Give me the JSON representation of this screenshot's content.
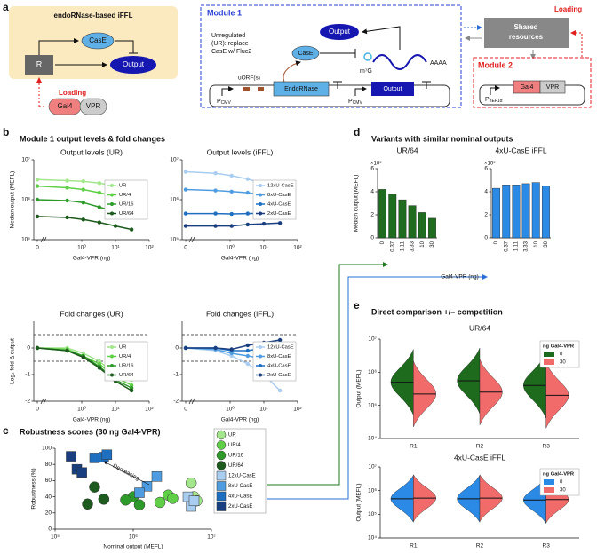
{
  "panel_labels": [
    "a",
    "b",
    "c",
    "d",
    "e"
  ],
  "headings": {
    "b": "Module 1 output levels & fold changes",
    "d": "Variants with similar nominal outputs",
    "e": "Direct comparison +/– competition"
  },
  "diagram": {
    "ffl_title": "endoRNase-based iFFL",
    "ffl_case": "CasE",
    "ffl_r": "R",
    "ffl_output": "Output",
    "loading_left": "Loading",
    "gal4_left": "Gal4",
    "vpr_left": "VPR",
    "module1": "Module 1",
    "m1_output": "Output",
    "ur_note": [
      "Unregulated",
      "(UR): replace",
      "CasE w/ Fluc2"
    ],
    "m1_case": "CasE",
    "cap": "m⁷G",
    "polya": "AAAA",
    "uorf": "uORF(s)",
    "endornase": "EndoRNase",
    "m1_gene": "Output",
    "promoter1": {
      "main": "P",
      "sub": "CMV"
    },
    "promoter2": {
      "main": "P",
      "sub": "CMV"
    },
    "shared": [
      "Shared",
      "resources"
    ],
    "loading_right": "Loading",
    "module2": "Module 2",
    "promoter3": {
      "main": "P",
      "sub": "hEF1α"
    },
    "gal4_right": "Gal4",
    "vpr_right": "VPR"
  },
  "chart_data": [
    {
      "type": "line",
      "title": "Output levels (UR)",
      "xlabel": "Gal4-VPR (ng)",
      "ylabel": "Median output (MEFL)",
      "xscale": "log",
      "yscale": "log",
      "x": [
        0,
        0.37,
        1.11,
        3.33,
        10,
        30
      ],
      "xlim": [
        0.1,
        100
      ],
      "xticks": [
        0,
        {
          "value": 1,
          "label": "10⁰"
        },
        {
          "value": 10,
          "label": "10¹"
        },
        {
          "value": 100,
          "label": "10²"
        }
      ],
      "ylim": [
        100000,
        10000000
      ],
      "yticks": [
        {
          "value": 100000,
          "label": "10⁵"
        },
        {
          "value": 1000000,
          "label": "10⁶"
        },
        {
          "value": 10000000,
          "label": "10⁷"
        }
      ],
      "legend": "right",
      "series": [
        {
          "name": "UR",
          "color": "#a3e68c",
          "values": [
            3200000,
            3000000,
            2900000,
            2600000,
            2200000,
            1900000
          ]
        },
        {
          "name": "UR/4",
          "color": "#5fcf47",
          "values": [
            2200000,
            2000000,
            1800000,
            1500000,
            1200000,
            1000000
          ]
        },
        {
          "name": "UR/16",
          "color": "#2e9a2a",
          "values": [
            1000000,
            950000,
            850000,
            650000,
            500000,
            400000
          ]
        },
        {
          "name": "UR/64",
          "color": "#1d5a1d",
          "values": [
            380000,
            360000,
            320000,
            270000,
            220000,
            180000
          ]
        }
      ]
    },
    {
      "type": "line",
      "title": "Output levels (iFFL)",
      "xlabel": "Gal4-VPR (ng)",
      "xscale": "log",
      "yscale": "log",
      "x": [
        0,
        0.37,
        1.11,
        3.33,
        10,
        30
      ],
      "xlim": [
        0.1,
        100
      ],
      "xticks": [
        0,
        {
          "value": 1,
          "label": "10⁰"
        },
        {
          "value": 10,
          "label": "10¹"
        },
        {
          "value": 100,
          "label": "10²"
        }
      ],
      "ylim": [
        100000,
        10000000
      ],
      "yticks": [
        {
          "value": 100000,
          "label": "10⁵"
        },
        {
          "value": 1000000,
          "label": "10⁶"
        },
        {
          "value": 10000000,
          "label": "10⁷"
        }
      ],
      "legend": "right",
      "series": [
        {
          "name": "12xU-CasE",
          "color": "#a9cdf0",
          "values": [
            5000000,
            4600000,
            4000000,
            3300000,
            2500000,
            1600000
          ]
        },
        {
          "name": "8xU-CasE",
          "color": "#4f9de0",
          "values": [
            1800000,
            1700000,
            1600000,
            1500000,
            1300000,
            1100000
          ]
        },
        {
          "name": "4xU-CasE",
          "color": "#1f6fc0",
          "values": [
            450000,
            450000,
            440000,
            450000,
            460000,
            480000
          ]
        },
        {
          "name": "2xU-CasE",
          "color": "#1a3f80",
          "values": [
            220000,
            220000,
            220000,
            240000,
            250000,
            260000
          ]
        }
      ]
    },
    {
      "type": "line",
      "title": "Fold changes (UR)",
      "xlabel": "Gal4-VPR (ng)",
      "ylabel": "Log₂ fold-Δ output",
      "xscale": "log",
      "x": [
        0,
        0.37,
        1.11,
        3.33,
        10,
        30
      ],
      "xlim": [
        0.1,
        100
      ],
      "xticks": [
        0,
        {
          "value": 1,
          "label": "10⁰"
        },
        {
          "value": 10,
          "label": "10¹"
        },
        {
          "value": 100,
          "label": "10²"
        }
      ],
      "ylim": [
        -2,
        1
      ],
      "yticks": [
        -2,
        -1,
        0
      ],
      "reference_lines": [
        0.5,
        -0.5
      ],
      "legend": "right",
      "series": [
        {
          "name": "UR",
          "color": "#a3e68c",
          "values": [
            0,
            0,
            -0.2,
            -0.5,
            -1,
            -1.2
          ]
        },
        {
          "name": "UR/4",
          "color": "#5fcf47",
          "values": [
            0,
            -0.05,
            -0.3,
            -0.6,
            -1.1,
            -1.4
          ]
        },
        {
          "name": "UR/16",
          "color": "#2e9a2a",
          "values": [
            0,
            -0.1,
            -0.3,
            -0.7,
            -1.2,
            -1.5
          ]
        },
        {
          "name": "UR/64",
          "color": "#1d5a1d",
          "values": [
            0,
            -0.1,
            -0.35,
            -0.75,
            -1.25,
            -1.6
          ]
        }
      ]
    },
    {
      "type": "line",
      "title": "Fold changes (iFFL)",
      "xlabel": "Gal4-VPR (ng)",
      "xscale": "log",
      "x": [
        0,
        0.37,
        1.11,
        3.33,
        10,
        30
      ],
      "xlim": [
        0.1,
        100
      ],
      "xticks": [
        0,
        {
          "value": 1,
          "label": "10⁰"
        },
        {
          "value": 10,
          "label": "10¹"
        },
        {
          "value": 100,
          "label": "10²"
        }
      ],
      "ylim": [
        -2,
        1
      ],
      "yticks": [
        -2,
        -1,
        0
      ],
      "reference_lines": [
        0.5,
        -0.5
      ],
      "legend": "right",
      "series": [
        {
          "name": "12xU-CasE",
          "color": "#a9cdf0",
          "values": [
            0,
            -0.1,
            -0.3,
            -0.6,
            -1,
            -1.6
          ]
        },
        {
          "name": "8xU-CasE",
          "color": "#4f9de0",
          "values": [
            0,
            -0.05,
            -0.2,
            -0.3,
            -0.4,
            -0.5
          ]
        },
        {
          "name": "4xU-CasE",
          "color": "#1f6fc0",
          "values": [
            0,
            0,
            -0.1,
            -0.1,
            0,
            0.2
          ]
        },
        {
          "name": "2xU-CasE",
          "color": "#1a3f80",
          "values": [
            0,
            0,
            -0.05,
            0.1,
            0.2,
            0.3
          ]
        }
      ]
    },
    {
      "type": "scatter",
      "title": "Robustness scores (30 ng Gal4-VPR)",
      "xlabel": "Nominal output (MEFL)",
      "ylabel": "Robustness (%)",
      "xscale": "log",
      "xlim": [
        100000,
        10000000
      ],
      "xticks": [
        {
          "value": 100000,
          "label": "10⁵"
        },
        {
          "value": 1000000,
          "label": "10⁶"
        },
        {
          "value": 10000000,
          "label": "10⁷"
        }
      ],
      "ylim": [
        0,
        100
      ],
      "yticks": [
        0,
        20,
        40,
        60,
        80,
        100
      ],
      "legend": "outside-right",
      "annotation": "Decreasing",
      "series": [
        {
          "name": "UR",
          "color": "#a3e68c",
          "marker": "circle",
          "x": [
            5500000,
            6000000,
            6500000
          ],
          "values": [
            57,
            40,
            35
          ]
        },
        {
          "name": "UR/4",
          "color": "#5fcf47",
          "marker": "circle",
          "x": [
            2800000,
            3200000,
            2200000
          ],
          "values": [
            42,
            38,
            33
          ]
        },
        {
          "name": "UR/16",
          "color": "#2e9a2a",
          "marker": "circle",
          "x": [
            1000000,
            1200000,
            800000
          ],
          "values": [
            40,
            30,
            36
          ]
        },
        {
          "name": "UR/64",
          "color": "#1d5a1d",
          "marker": "circle",
          "x": [
            320000,
            420000,
            260000
          ],
          "values": [
            52,
            37,
            31
          ]
        },
        {
          "name": "12xU-CasE",
          "color": "#a9cdf0",
          "marker": "square",
          "x": [
            5000000,
            5500000,
            6000000
          ],
          "values": [
            40,
            28,
            35
          ]
        },
        {
          "name": "8xU-CasE",
          "color": "#4f9de0",
          "marker": "square",
          "x": [
            1500000,
            2000000,
            1200000
          ],
          "values": [
            53,
            65,
            45
          ]
        },
        {
          "name": "4xU-CasE",
          "color": "#1f6fc0",
          "marker": "square",
          "x": [
            320000,
            420000,
            460000
          ],
          "values": [
            88,
            89,
            92
          ]
        },
        {
          "name": "2xU-CasE",
          "color": "#1a3f80",
          "marker": "square",
          "x": [
            160000,
            190000,
            220000
          ],
          "values": [
            90,
            74,
            70
          ]
        }
      ]
    },
    {
      "type": "bar",
      "title": "UR/64",
      "xlabel": "Gal4-VPR (ng)",
      "ylabel": "Median output (MEFL)",
      "y_multiplier": "×10⁵",
      "categories": [
        "0",
        "0.37",
        "1.11",
        "3.33",
        "10",
        "30"
      ],
      "values": [
        4.2,
        3.8,
        3.3,
        2.8,
        2.2,
        1.7
      ],
      "color": "#1f6b1f",
      "ylim": [
        0,
        6
      ],
      "yticks": [
        0,
        2,
        4,
        6
      ]
    },
    {
      "type": "bar",
      "title": "4xU-CasE iFFL",
      "y_multiplier": "×10⁵",
      "categories": [
        "0",
        "0.37",
        "1.11",
        "3.33",
        "10",
        "30"
      ],
      "values": [
        4.3,
        4.6,
        4.6,
        4.7,
        4.8,
        4.5
      ],
      "color": "#2a8ae6",
      "ylim": [
        0,
        6
      ],
      "yticks": [
        0,
        2,
        4,
        6
      ]
    },
    {
      "type": "violin",
      "title": "UR/64",
      "ylabel": "Output (MEFL)",
      "yscale": "log",
      "legend_title": "ng Gal4-VPR",
      "legend": "upper-right",
      "categories": [
        "R1",
        "R2",
        "R3"
      ],
      "ylim": [
        10000,
        10000000
      ],
      "yticks": [
        {
          "value": 10000,
          "label": "10⁴"
        },
        {
          "value": 100000,
          "label": "10⁵"
        },
        {
          "value": 1000000,
          "label": "10⁶"
        },
        {
          "value": 10000000,
          "label": "10⁷"
        }
      ],
      "series": [
        {
          "name": "0",
          "color": "#1e6b1e",
          "values": [
            500000,
            550000,
            400000
          ]
        },
        {
          "name": "30",
          "color": "#f26b6b",
          "values": [
            220000,
            250000,
            200000
          ]
        }
      ]
    },
    {
      "type": "violin",
      "title": "4xU-CasE iFFL",
      "ylabel": "Output (MEFL)",
      "yscale": "log",
      "legend_title": "ng Gal4-VPR",
      "legend": "upper-right",
      "categories": [
        "R1",
        "R2",
        "R3"
      ],
      "ylim": [
        10000,
        10000000
      ],
      "yticks": [
        {
          "value": 10000,
          "label": "10⁴"
        },
        {
          "value": 100000,
          "label": "10⁵"
        },
        {
          "value": 1000000,
          "label": "10⁶"
        },
        {
          "value": 10000000,
          "label": "10⁷"
        }
      ],
      "series": [
        {
          "name": "0",
          "color": "#2a8ae6",
          "values": [
            450000,
            450000,
            400000
          ]
        },
        {
          "name": "30",
          "color": "#f26b6b",
          "values": [
            480000,
            480000,
            420000
          ]
        }
      ]
    }
  ]
}
